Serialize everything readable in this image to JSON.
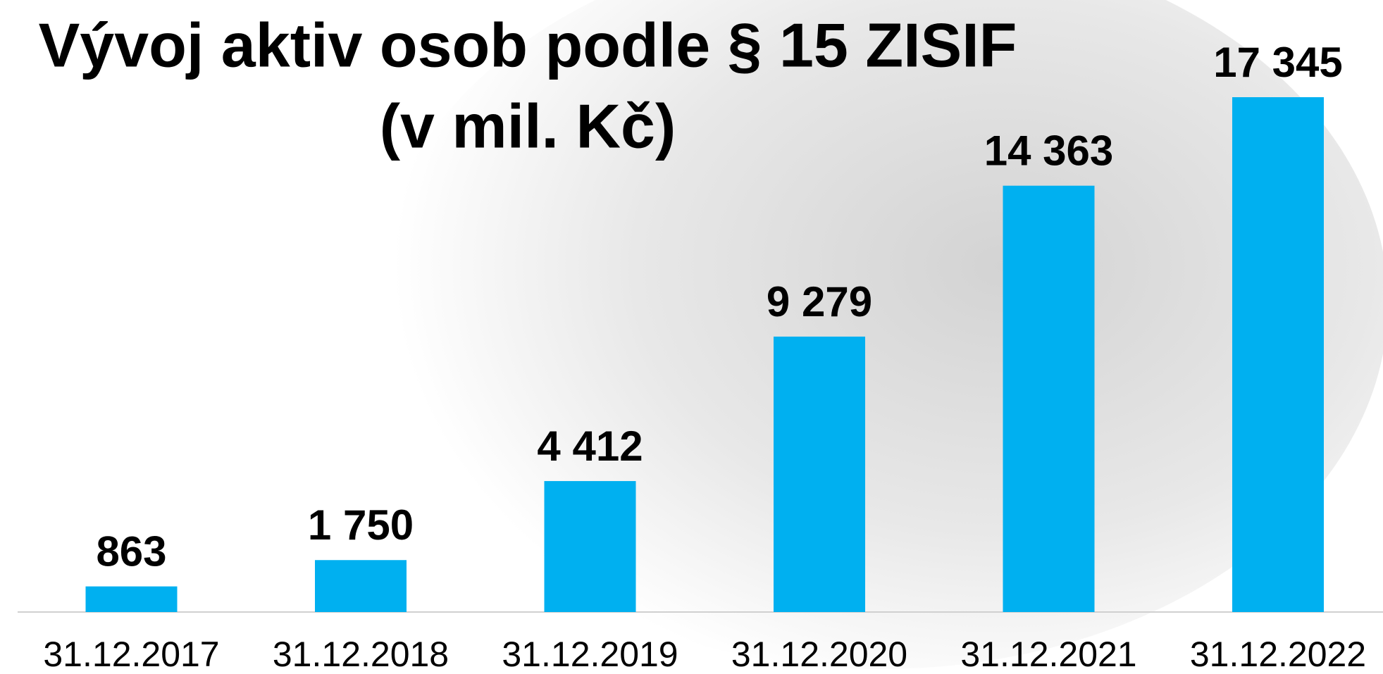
{
  "chart_data": {
    "type": "bar",
    "title": [
      "Vývoj aktiv osob podle § 15 ZISIF",
      "(v mil. Kč)"
    ],
    "categories": [
      "31.12.2017",
      "31.12.2018",
      "31.12.2019",
      "31.12.2020",
      "31.12.2021",
      "31.12.2022"
    ],
    "values": [
      863,
      1750,
      4412,
      9279,
      14363,
      17345
    ],
    "value_labels": [
      "863",
      "1 750",
      "4 412",
      "9 279",
      "14 363",
      "17 345"
    ],
    "color": "#00b0f0"
  }
}
